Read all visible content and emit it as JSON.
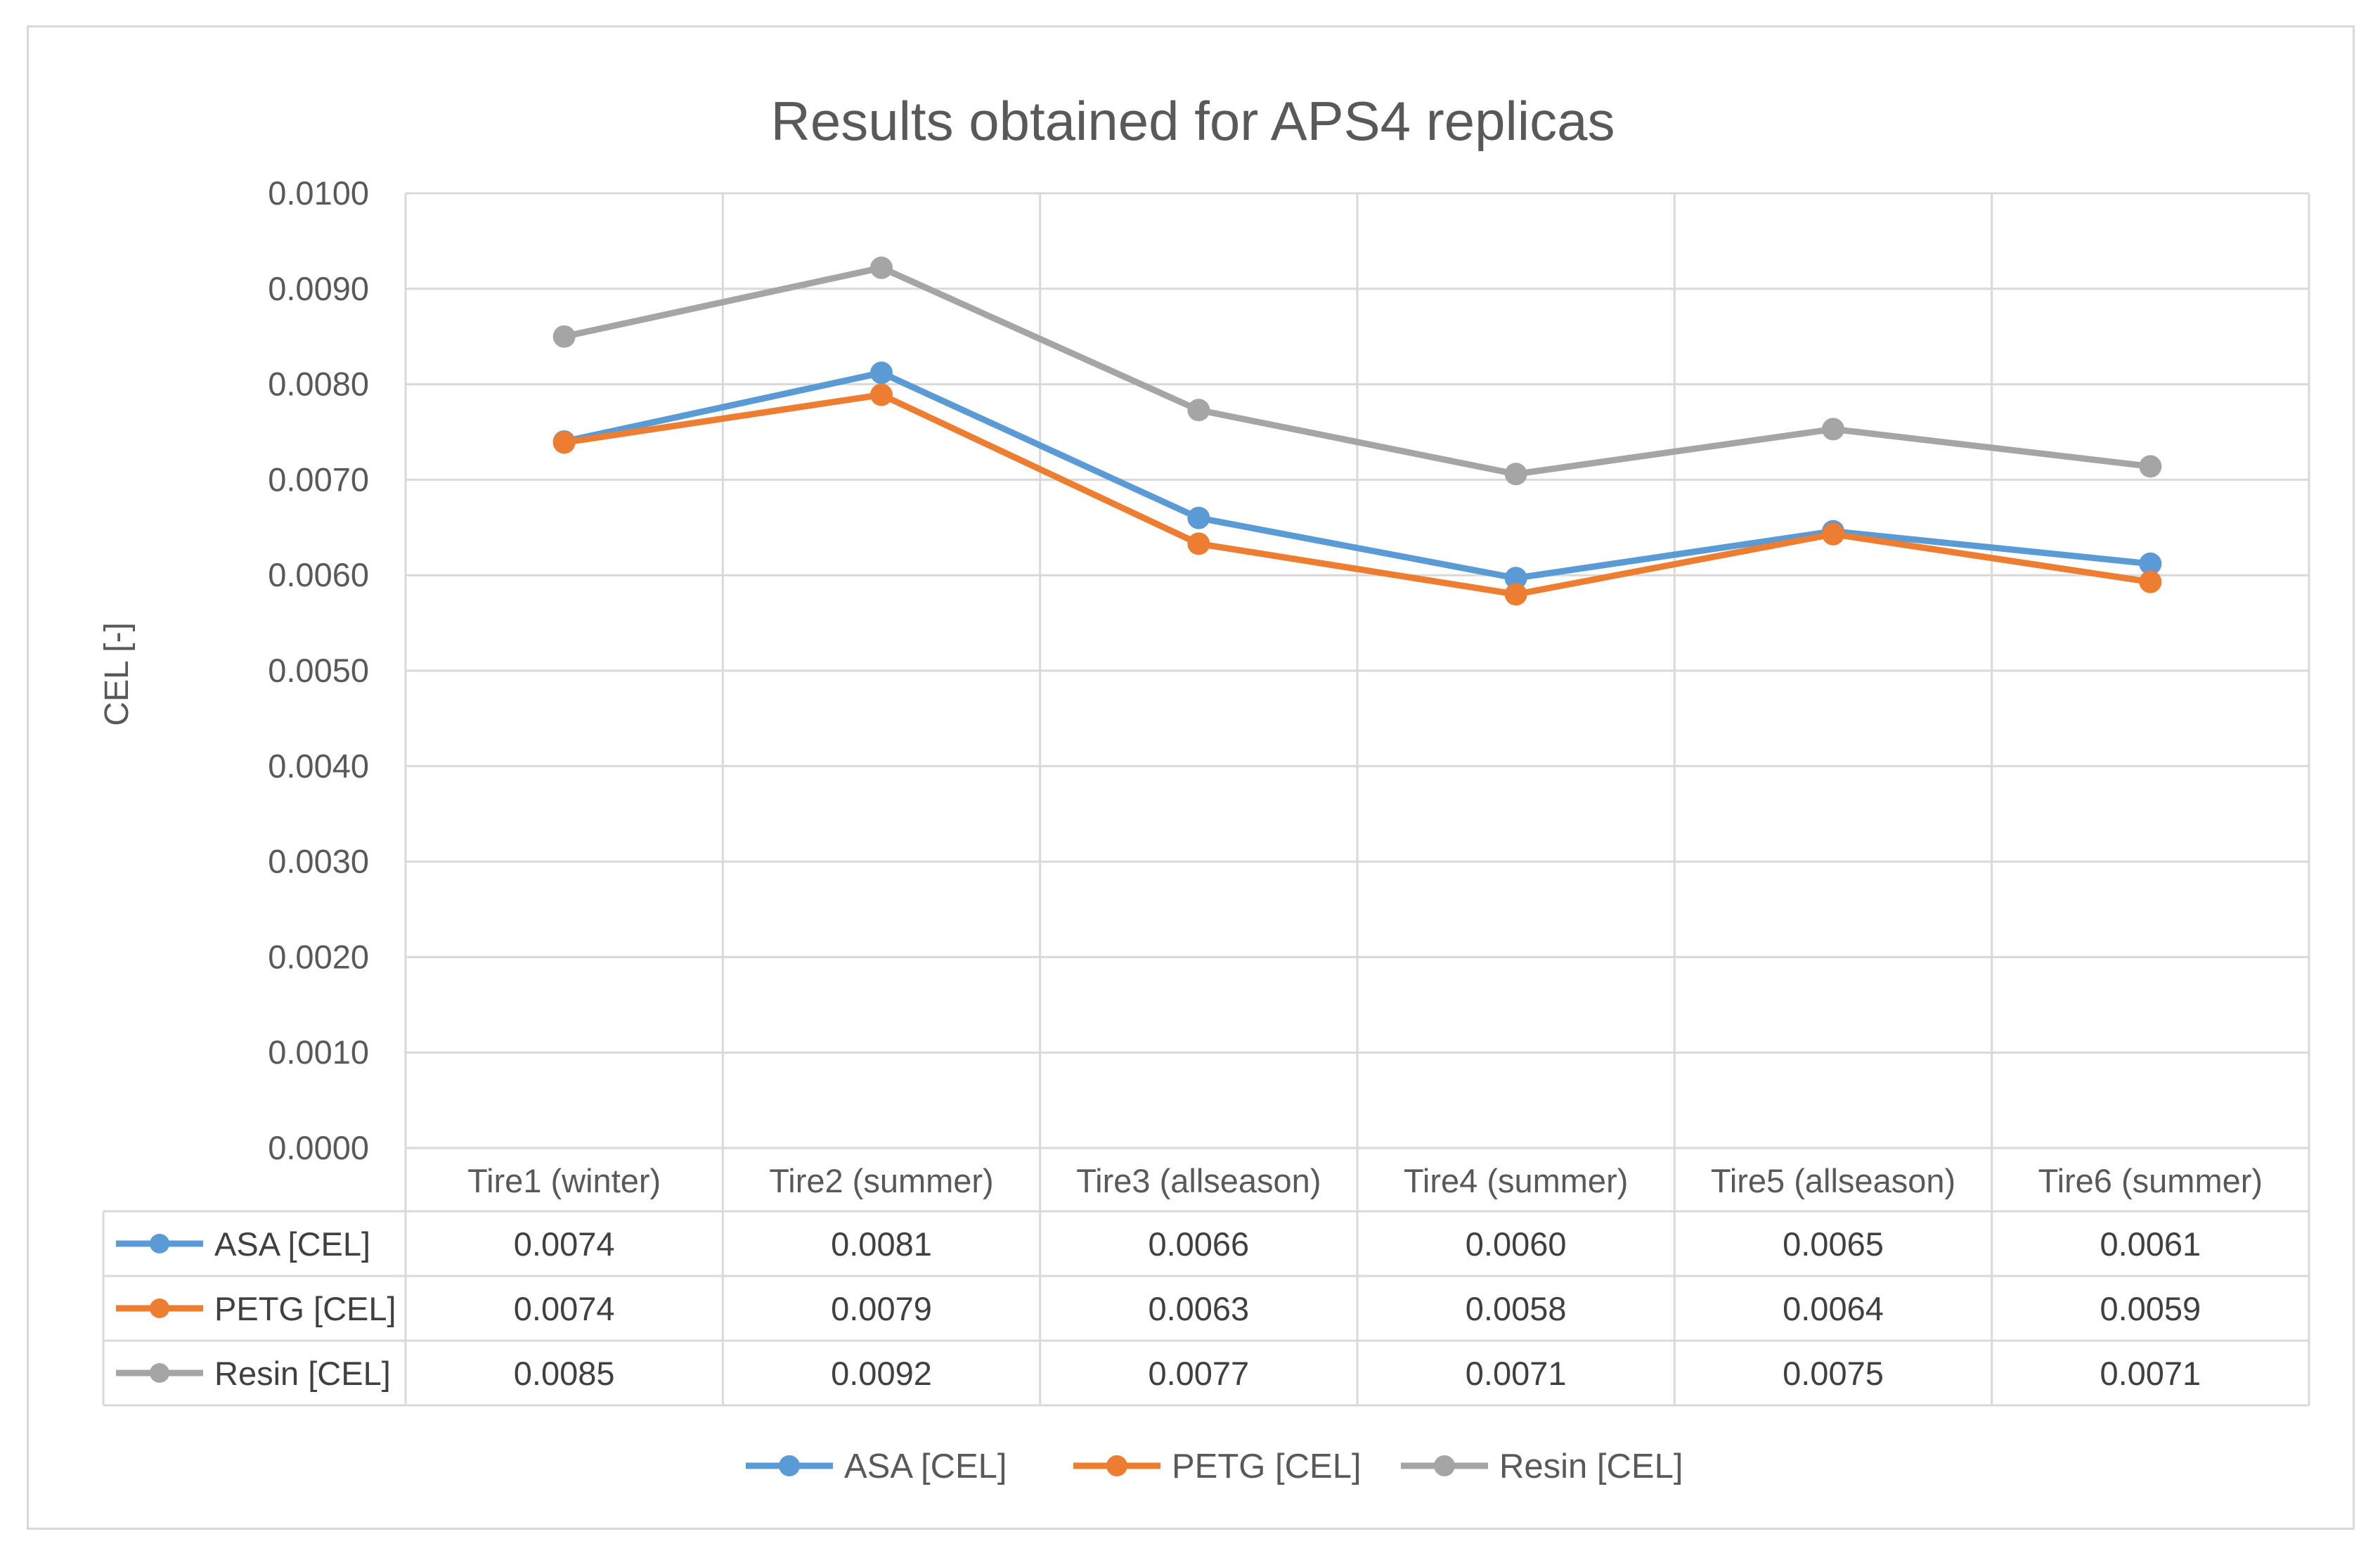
{
  "chart_data": {
    "type": "line",
    "title": "Results obtained for APS4 replicas",
    "xlabel": "",
    "ylabel": "CEL [-]",
    "ylim": [
      0,
      0.01
    ],
    "ytick_step": 0.001,
    "ytick_labels": [
      "0.0000",
      "0.0010",
      "0.0020",
      "0.0030",
      "0.0040",
      "0.0050",
      "0.0060",
      "0.0070",
      "0.0080",
      "0.0090",
      "0.0100"
    ],
    "grid": true,
    "legend_position": "bottom",
    "categories": [
      "Tire1 (winter)",
      "Tire2 (summer)",
      "Tire3 (allseason)",
      "Tire4 (summer)",
      "Tire5 (allseason)",
      "Tire6 (summer)"
    ],
    "series": [
      {
        "name": "ASA [CEL]",
        "color": "#5b9bd5",
        "values": [
          0.0074,
          0.00812,
          0.0066,
          0.00597,
          0.00646,
          0.00612
        ],
        "table_values": [
          "0.0074",
          "0.0081",
          "0.0066",
          "0.0060",
          "0.0065",
          "0.0061"
        ]
      },
      {
        "name": "PETG [CEL]",
        "color": "#ed7d31",
        "values": [
          0.00739,
          0.00789,
          0.00633,
          0.0058,
          0.00643,
          0.00593
        ],
        "table_values": [
          "0.0074",
          "0.0079",
          "0.0063",
          "0.0058",
          "0.0064",
          "0.0059"
        ]
      },
      {
        "name": "Resin [CEL]",
        "color": "#a5a5a5",
        "values": [
          0.0085,
          0.00922,
          0.00773,
          0.00706,
          0.00753,
          0.00714
        ],
        "table_values": [
          "0.0085",
          "0.0092",
          "0.0077",
          "0.0071",
          "0.0075",
          "0.0071"
        ]
      }
    ]
  },
  "colors": {
    "gridline": "#d9d9d9",
    "text": "#595959"
  }
}
